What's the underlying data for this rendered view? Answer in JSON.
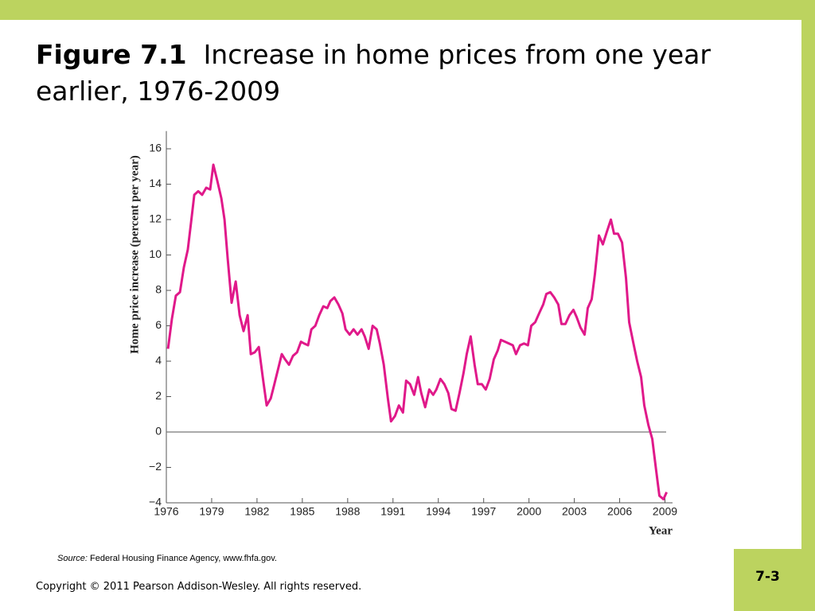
{
  "chart_data": {
    "type": "line",
    "title_label": "Figure 7.1",
    "title": "Increase in home prices from one year earlier, 1976-2009",
    "y_label": "Home price increase (percent per year)",
    "x_label": "Year",
    "source_label": "Source:",
    "source": "Federal Housing Finance Agency, www.fhfa.gov.",
    "footer": "Copyright © 2011 Pearson Addison-Wesley. All rights reserved.",
    "page_number": "7-3",
    "xlim": [
      1976,
      2009.5
    ],
    "xticks": [
      1976,
      1979,
      1982,
      1985,
      1988,
      1991,
      1994,
      1997,
      2000,
      2003,
      2006,
      2009
    ],
    "ylim": [
      -4,
      17
    ],
    "yticks": [
      {
        "value": -4,
        "label": "−4"
      },
      {
        "value": -2,
        "label": "−2"
      },
      0,
      2,
      4,
      6,
      8,
      10,
      12,
      14,
      16
    ],
    "zero_line": true,
    "series": [
      {
        "color": "#e0198a",
        "x": [
          1976.11,
          1976.37,
          1976.63,
          1976.9,
          1977.16,
          1977.42,
          1977.63,
          1977.85,
          1978.11,
          1978.37,
          1978.64,
          1978.9,
          1979.11,
          1979.37,
          1979.64,
          1979.85,
          1980.06,
          1980.32,
          1980.59,
          1980.85,
          1981.11,
          1981.38,
          1981.59,
          1981.85,
          1982.12,
          1982.38,
          1982.64,
          1982.91,
          1983.12,
          1983.38,
          1983.64,
          1983.86,
          1984.12,
          1984.38,
          1984.65,
          1984.91,
          1985.12,
          1985.38,
          1985.6,
          1985.86,
          1986.12,
          1986.39,
          1986.65,
          1986.86,
          1987.12,
          1987.39,
          1987.65,
          1987.86,
          1988.13,
          1988.39,
          1988.65,
          1988.92,
          1989.13,
          1989.39,
          1989.65,
          1989.92,
          1990.13,
          1990.39,
          1990.66,
          1990.87,
          1991.13,
          1991.39,
          1991.66,
          1991.87,
          1992.13,
          1992.4,
          1992.66,
          1992.87,
          1993.13,
          1993.4,
          1993.66,
          1993.87,
          1994.14,
          1994.4,
          1994.66,
          1994.87,
          1995.14,
          1995.4,
          1995.66,
          1995.88,
          1996.14,
          1996.4,
          1996.61,
          1996.88,
          1997.14,
          1997.4,
          1997.67,
          1997.93,
          1998.14,
          1998.41,
          1998.67,
          1998.93,
          1999.14,
          1999.41,
          1999.67,
          1999.93,
          2000.15,
          2000.41,
          2000.67,
          2000.94,
          2001.15,
          2001.41,
          2001.67,
          2001.94,
          2002.15,
          2002.41,
          2002.68,
          2002.94,
          2003.15,
          2003.41,
          2003.68,
          2003.89,
          2004.15,
          2004.36,
          2004.63,
          2004.89,
          2005.15,
          2005.42,
          2005.63,
          2005.89,
          2006.16,
          2006.42,
          2006.63,
          2006.89,
          2007.16,
          2007.42,
          2007.63,
          2007.9,
          2008.16,
          2008.42,
          2008.63,
          2008.9,
          2009.11
        ],
        "values": [
          4.7,
          6.4,
          7.7,
          7.9,
          9.3,
          10.3,
          11.8,
          13.4,
          13.6,
          13.4,
          13.8,
          13.7,
          15.1,
          14.2,
          13.2,
          12.0,
          9.8,
          7.3,
          8.5,
          6.6,
          5.7,
          6.6,
          4.4,
          4.5,
          4.8,
          3.1,
          1.5,
          1.9,
          2.6,
          3.5,
          4.4,
          4.1,
          3.8,
          4.3,
          4.5,
          5.1,
          5.0,
          4.9,
          5.8,
          6.0,
          6.6,
          7.1,
          7.0,
          7.4,
          7.6,
          7.2,
          6.7,
          5.8,
          5.5,
          5.8,
          5.5,
          5.8,
          5.4,
          4.7,
          6.0,
          5.8,
          5.0,
          3.8,
          1.9,
          0.6,
          0.9,
          1.5,
          1.1,
          2.9,
          2.7,
          2.1,
          3.1,
          2.2,
          1.4,
          2.4,
          2.1,
          2.4,
          3.0,
          2.7,
          2.2,
          1.3,
          1.2,
          2.2,
          3.3,
          4.4,
          5.4,
          3.8,
          2.7,
          2.7,
          2.4,
          3.0,
          4.1,
          4.6,
          5.2,
          5.1,
          5.0,
          4.9,
          4.4,
          4.9,
          5.0,
          4.9,
          6.0,
          6.2,
          6.7,
          7.2,
          7.8,
          7.9,
          7.6,
          7.2,
          6.1,
          6.1,
          6.6,
          6.9,
          6.5,
          5.9,
          5.5,
          7.0,
          7.5,
          8.9,
          11.1,
          10.6,
          11.3,
          12.0,
          11.2,
          11.2,
          10.7,
          8.7,
          6.2,
          5.1,
          4.0,
          3.1,
          1.5,
          0.4,
          -0.4,
          -2.2,
          -3.6,
          -3.8,
          -3.4
        ]
      }
    ]
  }
}
